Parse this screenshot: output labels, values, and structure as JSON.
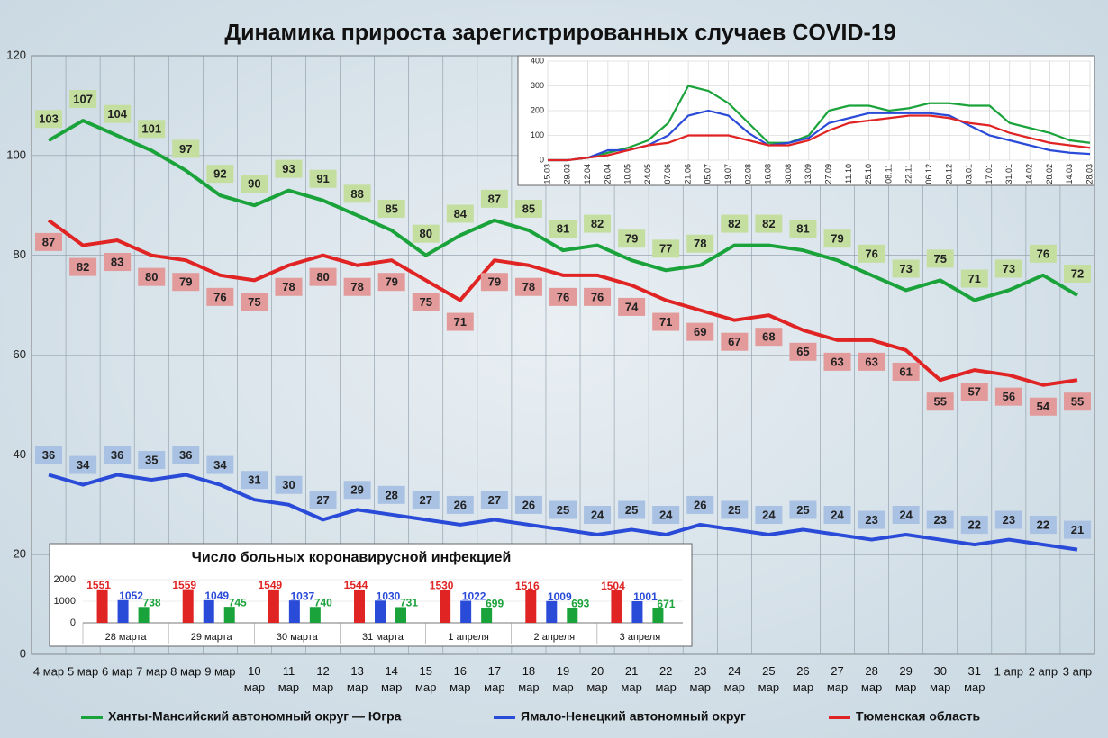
{
  "chart_data": [
    {
      "type": "line",
      "title": "Динамика прироста зарегистрированных случаев COVID-19",
      "categories": [
        "4 мар",
        "5 мар",
        "6 мар",
        "7 мар",
        "8 мар",
        "9 мар",
        "10 мар",
        "11 мар",
        "12 мар",
        "13 мар",
        "14 мар",
        "15 мар",
        "16 мар",
        "17 мар",
        "18 мар",
        "19 мар",
        "20 мар",
        "21 мар",
        "22 мар",
        "23 мар",
        "24 мар",
        "25 мар",
        "26 мар",
        "27 мар",
        "28 мар",
        "29 мар",
        "30 мар",
        "31 мар",
        "1 апр",
        "2 апр",
        "3 апр"
      ],
      "series": [
        {
          "name": "Ханты-Мансийский автономный округ — Югра",
          "color": "#1aa33a",
          "values": [
            103,
            107,
            104,
            101,
            97,
            92,
            90,
            93,
            91,
            88,
            85,
            80,
            84,
            87,
            85,
            81,
            82,
            79,
            77,
            78,
            82,
            82,
            81,
            79,
            76,
            73,
            75,
            71,
            73,
            76,
            72
          ]
        },
        {
          "name": "Ямало-Ненецкий автономный округ",
          "color": "#2a4ad8",
          "values": [
            36,
            34,
            36,
            35,
            36,
            34,
            31,
            30,
            27,
            29,
            28,
            27,
            26,
            27,
            26,
            25,
            24,
            25,
            24,
            26,
            25,
            24,
            25,
            24,
            23,
            24,
            23,
            22,
            23,
            22,
            21
          ]
        },
        {
          "name": "Тюменская область",
          "color": "#e02424",
          "values": [
            87,
            82,
            83,
            80,
            79,
            76,
            75,
            78,
            80,
            78,
            79,
            75,
            71,
            79,
            78,
            76,
            76,
            74,
            71,
            69,
            67,
            68,
            65,
            63,
            63,
            61,
            55,
            57,
            56,
            54,
            55
          ]
        }
      ],
      "ylim": [
        0,
        120
      ],
      "yticks": [
        0,
        20,
        40,
        60,
        80,
        100,
        120
      ],
      "grid": true,
      "legend": "bottom"
    },
    {
      "type": "line",
      "categories": [
        "15.03",
        "29.03",
        "12.04",
        "26.04",
        "10.05",
        "24.05",
        "07.06",
        "21.06",
        "05.07",
        "19.07",
        "02.08",
        "16.08",
        "30.08",
        "13.09",
        "27.09",
        "11.10",
        "25.10",
        "08.11",
        "22.11",
        "06.12",
        "20.12",
        "03.01",
        "17.01",
        "31.01",
        "14.02",
        "28.02",
        "14.03",
        "28.03"
      ],
      "series": [
        {
          "color": "#1aa33a",
          "values": [
            0,
            0,
            10,
            30,
            50,
            80,
            150,
            300,
            280,
            230,
            150,
            70,
            70,
            100,
            200,
            220,
            220,
            200,
            210,
            230,
            230,
            220,
            220,
            150,
            130,
            110,
            80,
            70
          ]
        },
        {
          "color": "#2a4ad8",
          "values": [
            0,
            0,
            10,
            40,
            40,
            60,
            100,
            180,
            200,
            180,
            110,
            60,
            70,
            90,
            150,
            170,
            190,
            190,
            190,
            190,
            180,
            140,
            100,
            80,
            60,
            40,
            30,
            25
          ]
        },
        {
          "color": "#e02424",
          "values": [
            0,
            0,
            10,
            20,
            40,
            60,
            70,
            100,
            100,
            100,
            80,
            60,
            60,
            80,
            120,
            150,
            160,
            170,
            180,
            180,
            170,
            150,
            140,
            110,
            90,
            70,
            60,
            50
          ]
        }
      ],
      "ylim": [
        0,
        400
      ],
      "yticks": [
        0,
        100,
        200,
        300,
        400
      ],
      "grid": true
    },
    {
      "type": "bar",
      "title": "Число больных коронавирусной инфекцией",
      "categories": [
        "28 марта",
        "29 марта",
        "30 марта",
        "31 марта",
        "1 апреля",
        "2 апреля",
        "3 апреля"
      ],
      "series": [
        {
          "color": "#e02424",
          "values": [
            1551,
            1559,
            1549,
            1544,
            1530,
            1516,
            1504
          ]
        },
        {
          "color": "#2a4ad8",
          "values": [
            1052,
            1049,
            1037,
            1030,
            1022,
            1009,
            1001
          ]
        },
        {
          "color": "#1aa33a",
          "values": [
            738,
            745,
            740,
            731,
            699,
            693,
            671
          ]
        }
      ],
      "ylim": [
        0,
        2000
      ],
      "yticks": [
        0,
        1000,
        2000
      ]
    }
  ]
}
